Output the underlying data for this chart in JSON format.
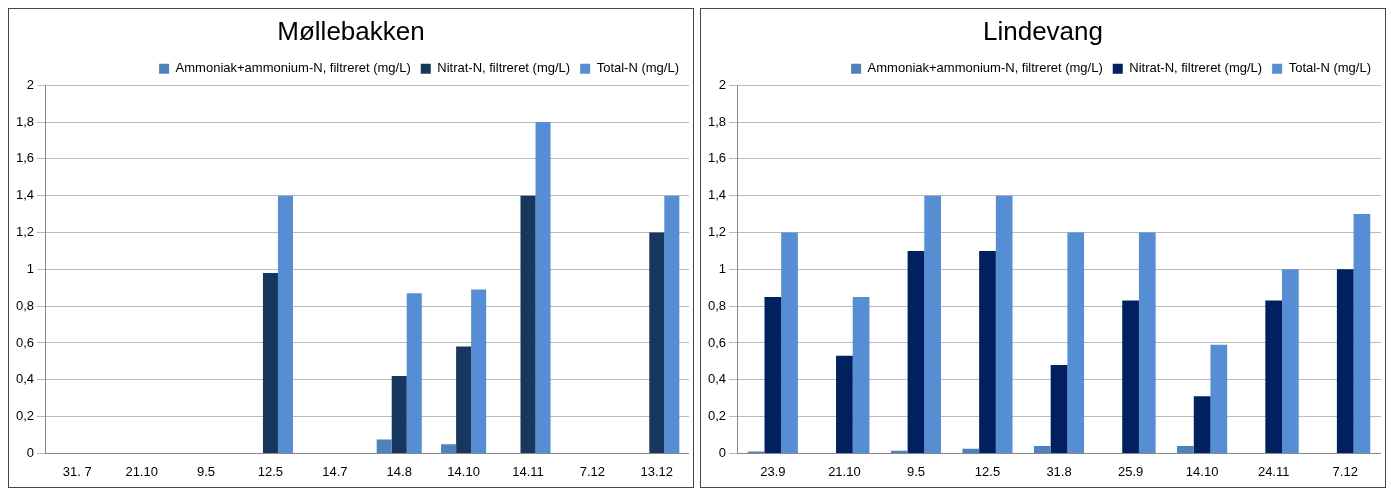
{
  "chart_data": [
    {
      "type": "bar",
      "title": "Møllebakken",
      "categories": [
        "31. 7",
        "21.10",
        "9.5",
        "12.5",
        "14.7",
        "14.8",
        "14.10",
        "14.11",
        "7.12",
        "13.12"
      ],
      "series": [
        {
          "name": "Ammoniak+ammonium-N, filtreret (mg/L)",
          "color": "#4f81bd",
          "values": [
            null,
            null,
            null,
            null,
            null,
            0.075,
            0.05,
            null,
            null,
            null
          ]
        },
        {
          "name": "Nitrat-N, filtreret (mg/L)",
          "color": "#17375e",
          "values": [
            null,
            null,
            null,
            0.98,
            null,
            0.42,
            0.58,
            1.4,
            null,
            1.2
          ]
        },
        {
          "name": "Total-N (mg/L)",
          "color": "#558ed5",
          "values": [
            null,
            null,
            null,
            1.4,
            null,
            0.87,
            0.89,
            1.8,
            null,
            1.4
          ]
        }
      ],
      "ylim": [
        0,
        2
      ],
      "yticks": [
        0,
        {
          "value": 0.2,
          "label": "0,2"
        },
        {
          "value": 0.4,
          "label": "0,4"
        },
        {
          "value": 0.6,
          "label": "0,6"
        },
        {
          "value": 0.8,
          "label": "0,8"
        },
        1,
        {
          "value": 1.2,
          "label": "1,2"
        },
        {
          "value": 1.4,
          "label": "1,4"
        },
        {
          "value": 1.6,
          "label": "1,6"
        },
        {
          "value": 1.8,
          "label": "1,8"
        },
        2
      ],
      "grid": "y",
      "legend": "top right"
    },
    {
      "type": "bar",
      "title": "Lindevang",
      "categories": [
        "23.9",
        "21.10",
        "9.5",
        "12.5",
        "31.8",
        "25.9",
        "14.10",
        "24.11",
        "7.12"
      ],
      "series": [
        {
          "name": "Ammoniak+ammonium-N, filtreret (mg/L)",
          "color": "#4f81bd",
          "values": [
            0.01,
            null,
            0.015,
            0.025,
            0.04,
            null,
            0.04,
            null,
            null
          ]
        },
        {
          "name": "Nitrat-N, filtreret (mg/L)",
          "color": "#002060",
          "values": [
            0.85,
            0.53,
            1.1,
            1.1,
            0.48,
            0.83,
            0.31,
            0.83,
            1.0
          ]
        },
        {
          "name": "Total-N (mg/L)",
          "color": "#558ed5",
          "values": [
            1.2,
            0.85,
            1.4,
            1.4,
            1.2,
            1.2,
            0.59,
            1.0,
            1.3
          ]
        }
      ],
      "ylim": [
        0,
        2
      ],
      "yticks": [
        0,
        {
          "value": 0.2,
          "label": "0,2"
        },
        {
          "value": 0.4,
          "label": "0,4"
        },
        {
          "value": 0.6,
          "label": "0,6"
        },
        {
          "value": 0.8,
          "label": "0,8"
        },
        1,
        {
          "value": 1.2,
          "label": "1,2"
        },
        {
          "value": 1.4,
          "label": "1,4"
        },
        {
          "value": 1.6,
          "label": "1,6"
        },
        {
          "value": 1.8,
          "label": "1,8"
        },
        2
      ],
      "grid": "y",
      "legend": "top right"
    }
  ]
}
